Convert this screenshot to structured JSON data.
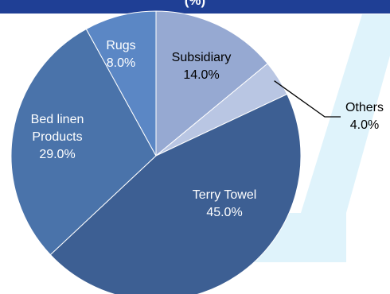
{
  "title_fragment": "(%)",
  "colors": {
    "title_bar": "#1f3f95",
    "watermark": "#dff3fb",
    "slice_border": "#ffffff",
    "label_light": "#ffffff",
    "label_dark": "#000000",
    "leader_line": "#000000"
  },
  "chart_data": {
    "type": "pie",
    "title": "",
    "start_angle_deg": 0,
    "direction": "clockwise",
    "slices": [
      {
        "label_lines": [
          "Subsidiary"
        ],
        "value": 14.0,
        "value_text": "14.0%",
        "color": "#96a9d2",
        "label_color": "#000000"
      },
      {
        "label_lines": [
          "Others"
        ],
        "value": 4.0,
        "value_text": "4.0%",
        "color": "#b9c6e3",
        "label_color": "#000000"
      },
      {
        "label_lines": [
          "Terry Towel"
        ],
        "value": 45.0,
        "value_text": "45.0%",
        "color": "#3d5f93",
        "label_color": "#ffffff"
      },
      {
        "label_lines": [
          "Bed linen",
          "Products"
        ],
        "value": 29.0,
        "value_text": "29.0%",
        "color": "#4a73aa",
        "label_color": "#ffffff"
      },
      {
        "label_lines": [
          "Rugs"
        ],
        "value": 8.0,
        "value_text": "8.0%",
        "color": "#5b87c5",
        "label_color": "#ffffff"
      }
    ]
  }
}
